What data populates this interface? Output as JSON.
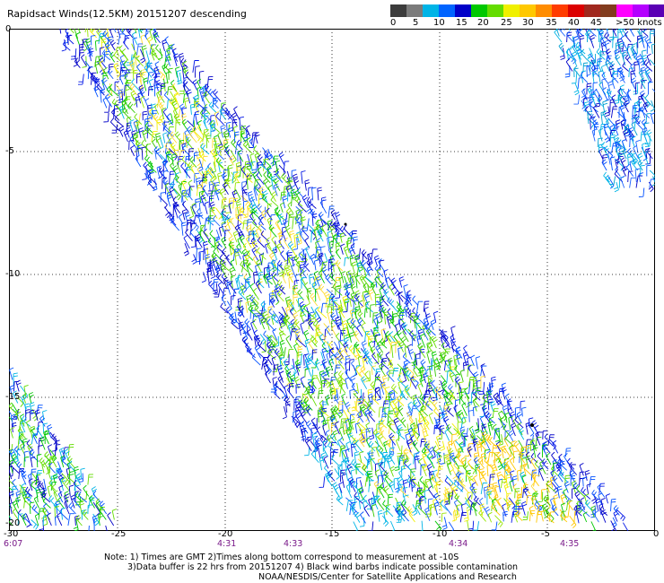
{
  "title": "Rapidsact Winds(12.5KM) 20151207 descending",
  "legend": {
    "labels": [
      "0",
      "5",
      "10",
      "15",
      "20",
      "25",
      "30",
      "35",
      "40",
      "45",
      ">50 knots"
    ],
    "colors": [
      "#3c3c3c",
      "#7b7b7b",
      "#00b4e6",
      "#0064ff",
      "#0000c8",
      "#00c800",
      "#64dc00",
      "#f0f000",
      "#ffc800",
      "#ff8c00",
      "#ff3c00",
      "#dc0000",
      "#a0281e",
      "#823c1e",
      "#ff00ff",
      "#b400ff",
      "#5a00b4"
    ]
  },
  "axes": {
    "x_ticks": [
      "-25",
      "-20",
      "-15",
      "-10",
      "-5",
      "0"
    ],
    "x_left_label": "-30",
    "y_ticks": [
      "0",
      "-5",
      "-10",
      "-15",
      "-20"
    ]
  },
  "times": [
    "6:07",
    "4:31",
    "4:33",
    "4:34",
    "4:35"
  ],
  "notes": {
    "line1": "Note: 1) Times are GMT 2)Times along bottom correspond to measurement at -10S",
    "line2": "3)Data buffer is 22 hrs from 20151207 4) Black wind barbs indicate possible contamination",
    "line3": "NOAA/NESDIS/Center for Satellite Applications and Research"
  }
}
